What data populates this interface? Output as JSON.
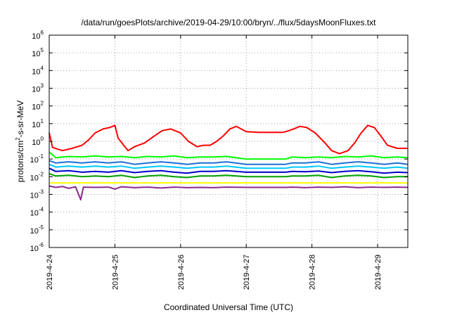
{
  "chart_data": {
    "type": "line",
    "title": "/data/run/goesPlots/archive/2019-04-29/10:00/bryn/../flux/5daysMoonFluxes.txt",
    "xlabel": "Coordinated Universal Time (UTC)",
    "ylabel": {
      "pre": "protons/cm",
      "sup": "2",
      "post": "-s-sr-MeV"
    },
    "yscale": "log",
    "ylim_exp": [
      -6,
      6
    ],
    "y_ticks": [
      {
        "base": "10",
        "exp": "-6"
      },
      {
        "base": "10",
        "exp": "-5"
      },
      {
        "base": "10",
        "exp": "-4"
      },
      {
        "base": "10",
        "exp": "-3"
      },
      {
        "base": "10",
        "exp": "-2"
      },
      {
        "base": "10",
        "exp": "-1"
      },
      {
        "base": "10",
        "exp": "0"
      },
      {
        "base": "10",
        "exp": "1"
      },
      {
        "base": "10",
        "exp": "2"
      },
      {
        "base": "10",
        "exp": "3"
      },
      {
        "base": "10",
        "exp": "4"
      },
      {
        "base": "10",
        "exp": "5"
      },
      {
        "base": "10",
        "exp": "6"
      }
    ],
    "x_days_range": [
      0,
      5.46
    ],
    "x_ticks": [
      {
        "label": "2019-4-24",
        "day": 0
      },
      {
        "label": "2019-4-25",
        "day": 1
      },
      {
        "label": "2019-4-26",
        "day": 2
      },
      {
        "label": "2019-4-27",
        "day": 3
      },
      {
        "label": "2019-4-28",
        "day": 4
      },
      {
        "label": "2019-4-29",
        "day": 5
      }
    ],
    "grid": true,
    "series": [
      {
        "color": "#ff0000",
        "points": [
          [
            0,
            3
          ],
          [
            0.05,
            0.45
          ],
          [
            0.2,
            0.3
          ],
          [
            0.35,
            0.4
          ],
          [
            0.5,
            0.6
          ],
          [
            0.6,
            1.2
          ],
          [
            0.7,
            3
          ],
          [
            0.82,
            5
          ],
          [
            0.92,
            6
          ],
          [
            1.0,
            8
          ],
          [
            1.05,
            1.5
          ],
          [
            1.2,
            0.3
          ],
          [
            1.3,
            0.5
          ],
          [
            1.45,
            0.8
          ],
          [
            1.6,
            2
          ],
          [
            1.72,
            4
          ],
          [
            1.85,
            5
          ],
          [
            2.0,
            3
          ],
          [
            2.12,
            1.0
          ],
          [
            2.25,
            0.5
          ],
          [
            2.35,
            0.6
          ],
          [
            2.45,
            0.6
          ],
          [
            2.55,
            1.0
          ],
          [
            2.65,
            2
          ],
          [
            2.75,
            5
          ],
          [
            2.85,
            7
          ],
          [
            3.0,
            3.5
          ],
          [
            3.2,
            3.2
          ],
          [
            3.55,
            3.2
          ],
          [
            3.6,
            3.5
          ],
          [
            3.72,
            5
          ],
          [
            3.82,
            7
          ],
          [
            3.92,
            6
          ],
          [
            4.05,
            3
          ],
          [
            4.2,
            0.8
          ],
          [
            4.3,
            0.3
          ],
          [
            4.42,
            0.2
          ],
          [
            4.55,
            0.3
          ],
          [
            4.65,
            0.8
          ],
          [
            4.75,
            3
          ],
          [
            4.85,
            8
          ],
          [
            4.95,
            6
          ],
          [
            5.05,
            2
          ],
          [
            5.15,
            0.6
          ],
          [
            5.3,
            0.4
          ],
          [
            5.46,
            0.4
          ]
        ]
      },
      {
        "color": "#00ff00",
        "points": [
          [
            0,
            0.25
          ],
          [
            0.1,
            0.12
          ],
          [
            0.3,
            0.14
          ],
          [
            0.5,
            0.13
          ],
          [
            0.7,
            0.15
          ],
          [
            0.9,
            0.13
          ],
          [
            1.1,
            0.14
          ],
          [
            1.3,
            0.12
          ],
          [
            1.5,
            0.14
          ],
          [
            1.7,
            0.13
          ],
          [
            1.9,
            0.15
          ],
          [
            2.1,
            0.12
          ],
          [
            2.3,
            0.13
          ],
          [
            2.5,
            0.13
          ],
          [
            2.7,
            0.14
          ],
          [
            3.0,
            0.1
          ],
          [
            3.6,
            0.1
          ],
          [
            3.7,
            0.13
          ],
          [
            3.9,
            0.12
          ],
          [
            4.1,
            0.13
          ],
          [
            4.3,
            0.12
          ],
          [
            4.5,
            0.14
          ],
          [
            4.7,
            0.13
          ],
          [
            4.9,
            0.15
          ],
          [
            5.1,
            0.12
          ],
          [
            5.3,
            0.13
          ],
          [
            5.46,
            0.12
          ]
        ]
      },
      {
        "color": "#1b6fd8",
        "points": [
          [
            0,
            0.08
          ],
          [
            0.1,
            0.06
          ],
          [
            0.3,
            0.07
          ],
          [
            0.5,
            0.06
          ],
          [
            0.7,
            0.07
          ],
          [
            0.9,
            0.06
          ],
          [
            1.1,
            0.07
          ],
          [
            1.3,
            0.05
          ],
          [
            1.5,
            0.06
          ],
          [
            1.7,
            0.07
          ],
          [
            1.9,
            0.06
          ],
          [
            2.1,
            0.05
          ],
          [
            2.3,
            0.06
          ],
          [
            2.5,
            0.06
          ],
          [
            2.7,
            0.07
          ],
          [
            3.0,
            0.05
          ],
          [
            3.6,
            0.05
          ],
          [
            3.7,
            0.06
          ],
          [
            3.9,
            0.06
          ],
          [
            4.1,
            0.07
          ],
          [
            4.3,
            0.05
          ],
          [
            4.5,
            0.06
          ],
          [
            4.7,
            0.07
          ],
          [
            4.9,
            0.06
          ],
          [
            5.1,
            0.05
          ],
          [
            5.3,
            0.06
          ],
          [
            5.46,
            0.05
          ]
        ]
      },
      {
        "color": "#00c8ff",
        "points": [
          [
            0,
            0.05
          ],
          [
            0.1,
            0.035
          ],
          [
            0.3,
            0.04
          ],
          [
            0.5,
            0.035
          ],
          [
            0.7,
            0.04
          ],
          [
            0.9,
            0.035
          ],
          [
            1.1,
            0.04
          ],
          [
            1.3,
            0.03
          ],
          [
            1.5,
            0.035
          ],
          [
            1.7,
            0.04
          ],
          [
            1.9,
            0.035
          ],
          [
            2.1,
            0.03
          ],
          [
            2.3,
            0.035
          ],
          [
            2.5,
            0.035
          ],
          [
            2.7,
            0.04
          ],
          [
            3.0,
            0.03
          ],
          [
            3.6,
            0.03
          ],
          [
            3.7,
            0.035
          ],
          [
            3.9,
            0.035
          ],
          [
            4.1,
            0.04
          ],
          [
            4.3,
            0.03
          ],
          [
            4.5,
            0.035
          ],
          [
            4.7,
            0.04
          ],
          [
            4.9,
            0.035
          ],
          [
            5.1,
            0.03
          ],
          [
            5.3,
            0.035
          ],
          [
            5.46,
            0.03
          ]
        ]
      },
      {
        "color": "#0000cc",
        "points": [
          [
            0,
            0.03
          ],
          [
            0.1,
            0.02
          ],
          [
            0.3,
            0.022
          ],
          [
            0.5,
            0.018
          ],
          [
            0.7,
            0.02
          ],
          [
            0.9,
            0.018
          ],
          [
            1.1,
            0.022
          ],
          [
            1.3,
            0.017
          ],
          [
            1.5,
            0.02
          ],
          [
            1.7,
            0.022
          ],
          [
            1.9,
            0.018
          ],
          [
            2.1,
            0.016
          ],
          [
            2.3,
            0.02
          ],
          [
            2.5,
            0.02
          ],
          [
            2.7,
            0.022
          ],
          [
            3.0,
            0.018
          ],
          [
            3.6,
            0.018
          ],
          [
            3.7,
            0.02
          ],
          [
            3.9,
            0.019
          ],
          [
            4.1,
            0.021
          ],
          [
            4.3,
            0.017
          ],
          [
            4.5,
            0.02
          ],
          [
            4.7,
            0.022
          ],
          [
            4.9,
            0.019
          ],
          [
            5.1,
            0.016
          ],
          [
            5.3,
            0.018
          ],
          [
            5.46,
            0.017
          ]
        ]
      },
      {
        "color": "#00a000",
        "points": [
          [
            0,
            0.015
          ],
          [
            0.1,
            0.011
          ],
          [
            0.3,
            0.012
          ],
          [
            0.5,
            0.01
          ],
          [
            0.7,
            0.011
          ],
          [
            0.9,
            0.01
          ],
          [
            1.1,
            0.012
          ],
          [
            1.3,
            0.009
          ],
          [
            1.5,
            0.011
          ],
          [
            1.7,
            0.012
          ],
          [
            1.9,
            0.01
          ],
          [
            2.1,
            0.009
          ],
          [
            2.3,
            0.011
          ],
          [
            2.5,
            0.011
          ],
          [
            2.7,
            0.012
          ],
          [
            3.0,
            0.01
          ],
          [
            3.6,
            0.01
          ],
          [
            3.7,
            0.011
          ],
          [
            3.9,
            0.011
          ],
          [
            4.1,
            0.012
          ],
          [
            4.3,
            0.009
          ],
          [
            4.5,
            0.011
          ],
          [
            4.7,
            0.012
          ],
          [
            4.9,
            0.011
          ],
          [
            5.1,
            0.009
          ],
          [
            5.3,
            0.01
          ],
          [
            5.46,
            0.01
          ]
        ]
      },
      {
        "color": "#ffff00",
        "points": [
          [
            0,
            0.0045
          ],
          [
            0.5,
            0.0045
          ],
          [
            1.0,
            0.0045
          ],
          [
            1.5,
            0.0045
          ],
          [
            2.0,
            0.0045
          ],
          [
            2.5,
            0.0045
          ],
          [
            3.0,
            0.0045
          ],
          [
            3.5,
            0.0045
          ],
          [
            4.0,
            0.0045
          ],
          [
            4.5,
            0.0045
          ],
          [
            5.0,
            0.0045
          ],
          [
            5.46,
            0.0045
          ]
        ]
      },
      {
        "color": "#8b2a8b",
        "points": [
          [
            0,
            0.003
          ],
          [
            0.1,
            0.0025
          ],
          [
            0.2,
            0.0028
          ],
          [
            0.3,
            0.0022
          ],
          [
            0.4,
            0.0027
          ],
          [
            0.48,
            0.0005
          ],
          [
            0.52,
            0.0026
          ],
          [
            0.7,
            0.0025
          ],
          [
            0.9,
            0.0026
          ],
          [
            1.0,
            0.002
          ],
          [
            1.1,
            0.0027
          ],
          [
            1.3,
            0.0024
          ],
          [
            1.5,
            0.0026
          ],
          [
            1.7,
            0.0023
          ],
          [
            1.9,
            0.0026
          ],
          [
            2.1,
            0.0024
          ],
          [
            2.3,
            0.0025
          ],
          [
            2.5,
            0.0024
          ],
          [
            2.7,
            0.0026
          ],
          [
            3.0,
            0.0025
          ],
          [
            3.6,
            0.0025
          ],
          [
            3.7,
            0.0026
          ],
          [
            3.9,
            0.0024
          ],
          [
            4.1,
            0.0026
          ],
          [
            4.3,
            0.0025
          ],
          [
            4.5,
            0.0027
          ],
          [
            4.7,
            0.0024
          ],
          [
            4.9,
            0.0026
          ],
          [
            5.1,
            0.0025
          ],
          [
            5.3,
            0.0026
          ],
          [
            5.46,
            0.0025
          ]
        ]
      }
    ]
  }
}
